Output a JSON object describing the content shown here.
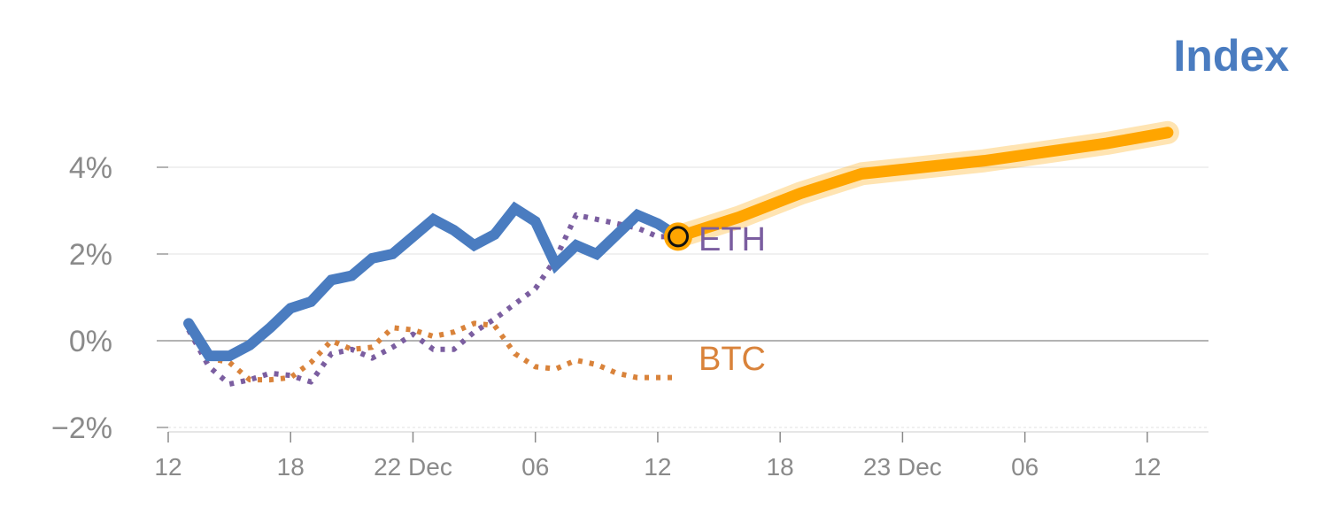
{
  "chart_data": {
    "type": "line",
    "legend": {
      "title": "Index",
      "placement": "top-right"
    },
    "x_ticks": [
      "12",
      "18",
      "22 Dec",
      "06",
      "12",
      "18",
      "23 Dec",
      "06",
      "12"
    ],
    "y_ticks": [
      "4%",
      "2%",
      "0%",
      "−2%"
    ],
    "ylim": [
      -2,
      5
    ],
    "xlim": [
      0,
      51
    ],
    "x_tick_positions": [
      0,
      6,
      12,
      18,
      24,
      30,
      36,
      42,
      48
    ],
    "series": [
      {
        "key": "index",
        "style": "solid",
        "color": "#4A7CC0",
        "x": [
          1,
          2,
          3,
          4,
          5,
          6,
          7,
          8,
          9,
          10,
          11,
          12,
          13,
          14,
          15,
          16,
          17,
          18,
          19,
          20,
          21,
          22,
          23,
          24,
          25
        ],
        "values": [
          0.4,
          -0.35,
          -0.35,
          -0.1,
          0.3,
          0.75,
          0.9,
          1.4,
          1.5,
          1.9,
          2.0,
          2.4,
          2.8,
          2.55,
          2.2,
          2.45,
          3.05,
          2.75,
          1.75,
          2.2,
          2.0,
          2.45,
          2.9,
          2.7,
          2.4
        ]
      },
      {
        "key": "eth",
        "name": "ETH",
        "style": "dotted",
        "color": "#7B5EA0",
        "x": [
          1,
          2,
          3,
          4,
          5,
          6,
          7,
          8,
          9,
          10,
          11,
          12,
          13,
          14,
          15,
          16,
          17,
          18,
          19,
          20,
          21,
          22,
          23,
          24,
          25
        ],
        "values": [
          0.25,
          -0.6,
          -1.0,
          -0.9,
          -0.75,
          -0.8,
          -0.95,
          -0.3,
          -0.2,
          -0.4,
          -0.15,
          0.15,
          -0.2,
          -0.2,
          0.2,
          0.5,
          0.85,
          1.2,
          1.9,
          2.9,
          2.8,
          2.7,
          2.6,
          2.4,
          2.4
        ]
      },
      {
        "key": "btc",
        "name": "BTC",
        "style": "dotted",
        "color": "#D9833B",
        "x": [
          1,
          2,
          3,
          4,
          5,
          6,
          7,
          8,
          9,
          10,
          11,
          12,
          13,
          14,
          15,
          16,
          17,
          18,
          19,
          20,
          21,
          22,
          23,
          24,
          25
        ],
        "values": [
          0.3,
          -0.4,
          -0.5,
          -0.9,
          -0.9,
          -0.85,
          -0.5,
          0.0,
          -0.2,
          -0.15,
          0.3,
          0.25,
          0.1,
          0.2,
          0.4,
          0.35,
          -0.3,
          -0.6,
          -0.65,
          -0.45,
          -0.55,
          -0.75,
          -0.85,
          -0.85,
          -0.85
        ]
      },
      {
        "key": "projection",
        "style": "highlight",
        "color": "#FFA500",
        "x": [
          25,
          28,
          31,
          34,
          37,
          40,
          43,
          46,
          49
        ],
        "values": [
          2.4,
          2.85,
          3.4,
          3.85,
          4.0,
          4.15,
          4.35,
          4.55,
          4.8
        ]
      }
    ],
    "marker": {
      "x": 25,
      "value": 2.4,
      "color": "#FFA500"
    },
    "grid": true
  }
}
